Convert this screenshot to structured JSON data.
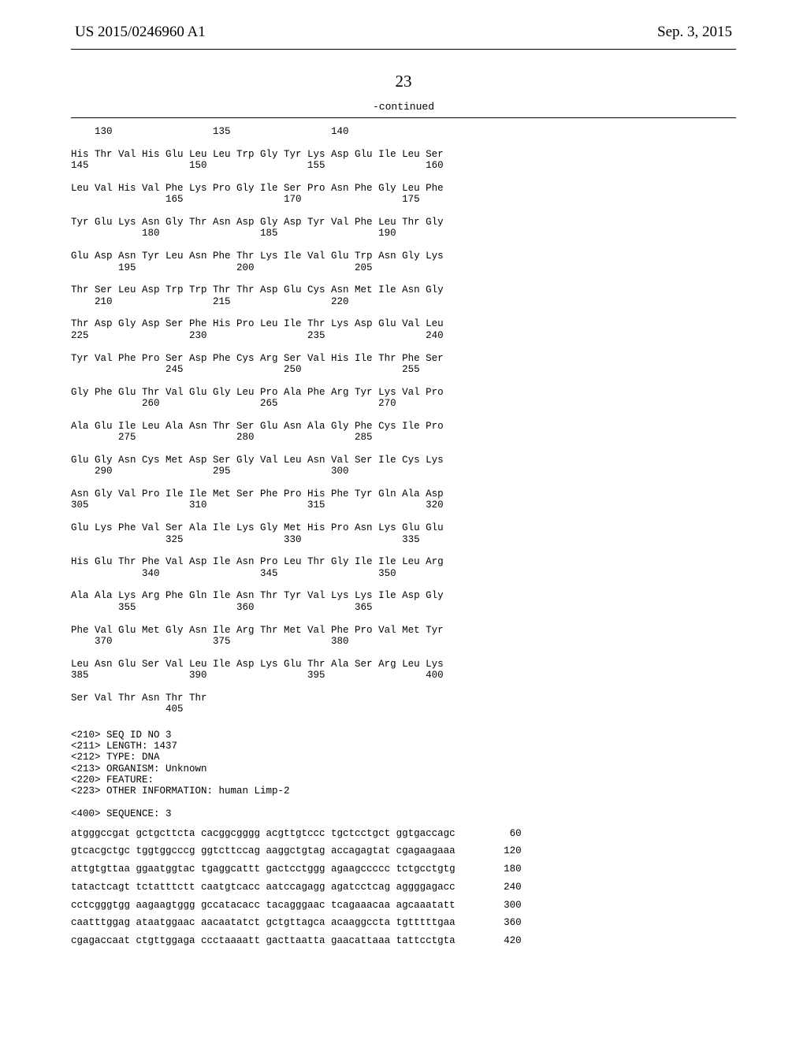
{
  "header": {
    "pubnum": "US 2015/0246960 A1",
    "pubdate": "Sep. 3, 2015"
  },
  "page_number": "23",
  "continued_label": "-continued",
  "protein_block": "    130                 135                 140\n\nHis Thr Val His Glu Leu Leu Trp Gly Tyr Lys Asp Glu Ile Leu Ser\n145                 150                 155                 160\n\nLeu Val His Val Phe Lys Pro Gly Ile Ser Pro Asn Phe Gly Leu Phe\n                165                 170                 175\n\nTyr Glu Lys Asn Gly Thr Asn Asp Gly Asp Tyr Val Phe Leu Thr Gly\n            180                 185                 190\n\nGlu Asp Asn Tyr Leu Asn Phe Thr Lys Ile Val Glu Trp Asn Gly Lys\n        195                 200                 205\n\nThr Ser Leu Asp Trp Trp Thr Thr Asp Glu Cys Asn Met Ile Asn Gly\n    210                 215                 220\n\nThr Asp Gly Asp Ser Phe His Pro Leu Ile Thr Lys Asp Glu Val Leu\n225                 230                 235                 240\n\nTyr Val Phe Pro Ser Asp Phe Cys Arg Ser Val His Ile Thr Phe Ser\n                245                 250                 255\n\nGly Phe Glu Thr Val Glu Gly Leu Pro Ala Phe Arg Tyr Lys Val Pro\n            260                 265                 270\n\nAla Glu Ile Leu Ala Asn Thr Ser Glu Asn Ala Gly Phe Cys Ile Pro\n        275                 280                 285\n\nGlu Gly Asn Cys Met Asp Ser Gly Val Leu Asn Val Ser Ile Cys Lys\n    290                 295                 300\n\nAsn Gly Val Pro Ile Ile Met Ser Phe Pro His Phe Tyr Gln Ala Asp\n305                 310                 315                 320\n\nGlu Lys Phe Val Ser Ala Ile Lys Gly Met His Pro Asn Lys Glu Glu\n                325                 330                 335\n\nHis Glu Thr Phe Val Asp Ile Asn Pro Leu Thr Gly Ile Ile Leu Arg\n            340                 345                 350\n\nAla Ala Lys Arg Phe Gln Ile Asn Thr Tyr Val Lys Lys Ile Asp Gly\n        355                 360                 365\n\nPhe Val Glu Met Gly Asn Ile Arg Thr Met Val Phe Pro Val Met Tyr\n    370                 375                 380\n\nLeu Asn Glu Ser Val Leu Ile Asp Lys Glu Thr Ala Ser Arg Leu Lys\n385                 390                 395                 400\n\nSer Val Thr Asn Thr Thr\n                405",
  "meta_block": "<210> SEQ ID NO 3\n<211> LENGTH: 1437\n<212> TYPE: DNA\n<213> ORGANISM: Unknown\n<220> FEATURE:\n<223> OTHER INFORMATION: human Limp-2\n\n<400> SEQUENCE: 3",
  "nucleotide_rows": [
    {
      "seq": "atgggccgat gctgcttcta cacggcgggg acgttgtccc tgctcctgct ggtgaccagc",
      "n": "60"
    },
    {
      "seq": "gtcacgctgc tggtggcccg ggtcttccag aaggctgtag accagagtat cgagaagaaa",
      "n": "120"
    },
    {
      "seq": "attgtgttaa ggaatggtac tgaggcattt gactcctggg agaagccccc tctgcctgtg",
      "n": "180"
    },
    {
      "seq": "tatactcagt tctatttctt caatgtcacc aatccagagg agatcctcag aggggagacc",
      "n": "240"
    },
    {
      "seq": "cctcgggtgg aagaagtggg gccatacacc tacagggaac tcagaaacaa agcaaatatt",
      "n": "300"
    },
    {
      "seq": "caatttggag ataatggaac aacaatatct gctgttagca acaaggccta tgtttttgaa",
      "n": "360"
    },
    {
      "seq": "cgagaccaat ctgttggaga ccctaaaatt gacttaatta gaacattaaa tattcctgta",
      "n": "420"
    }
  ]
}
